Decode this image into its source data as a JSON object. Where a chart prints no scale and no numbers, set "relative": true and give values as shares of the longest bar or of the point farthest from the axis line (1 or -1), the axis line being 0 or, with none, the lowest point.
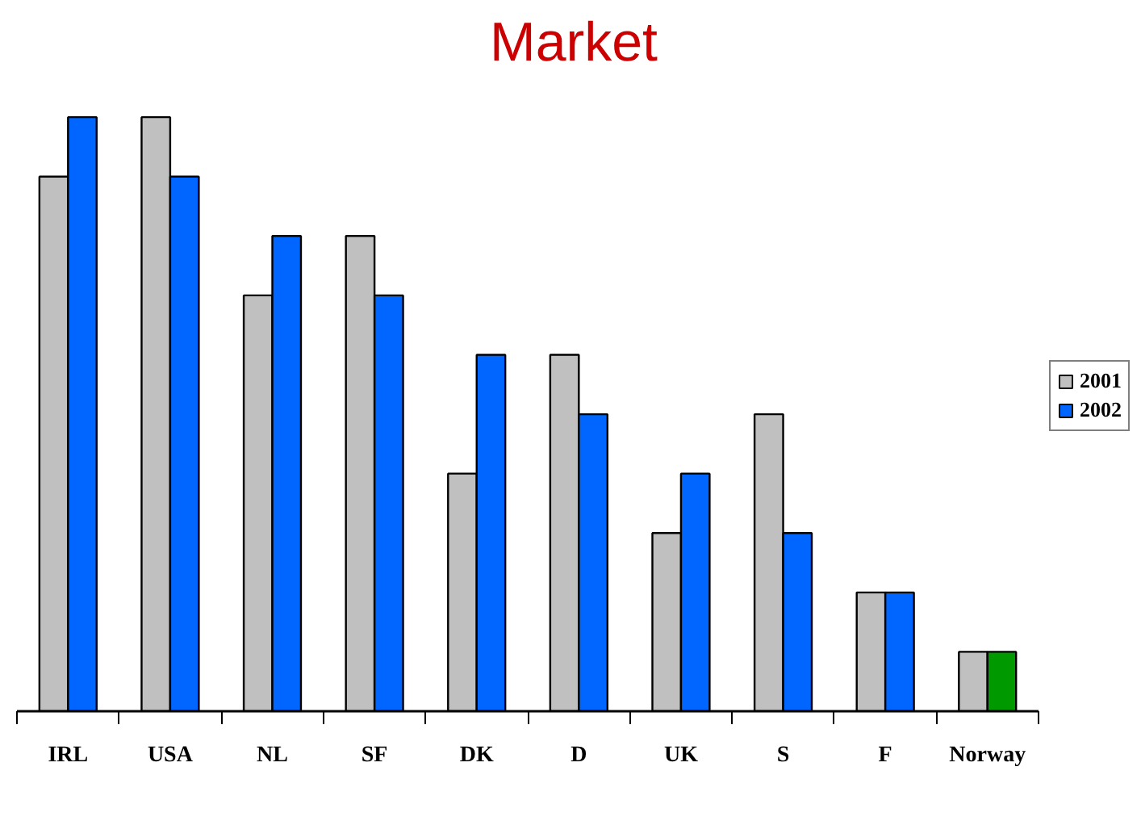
{
  "chart_data": {
    "type": "bar",
    "title": "Market",
    "relative": true,
    "legend": "right",
    "grid": false,
    "categories": [
      "IRL",
      "USA",
      "NL",
      "SF",
      "DK",
      "D",
      "UK",
      "S",
      "F",
      "Norway"
    ],
    "series": [
      {
        "name": "2001",
        "color": "#c0c0c0",
        "values": [
          0.9,
          1.0,
          0.7,
          0.8,
          0.4,
          0.6,
          0.3,
          0.5,
          0.2,
          0.1
        ]
      },
      {
        "name": "2002",
        "color": "#0066ff",
        "colors": [
          "#0066ff",
          "#0066ff",
          "#0066ff",
          "#0066ff",
          "#0066ff",
          "#0066ff",
          "#0066ff",
          "#0066ff",
          "#0066ff",
          "#009900"
        ],
        "values": [
          1.0,
          0.9,
          0.8,
          0.7,
          0.6,
          0.5,
          0.4,
          0.3,
          0.2,
          0.1
        ]
      }
    ]
  }
}
